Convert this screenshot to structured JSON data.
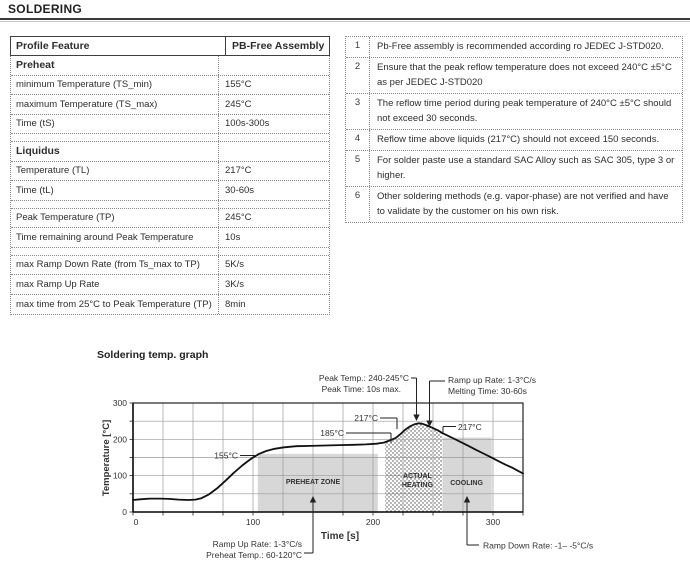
{
  "page": {
    "title": "SOLDERING"
  },
  "profile_table": {
    "headers": [
      "Profile Feature",
      "PB-Free Assembly"
    ],
    "rows": [
      {
        "feature": "Preheat",
        "value": "",
        "bold": true
      },
      {
        "feature": "minimum Temperature (TS_min)",
        "value": "155°C"
      },
      {
        "feature": "maximum Temperature (TS_max)",
        "value": "245°C"
      },
      {
        "feature": "Time (tS)",
        "value": "100s-300s"
      },
      {
        "spacer": true
      },
      {
        "feature": "Liquidus",
        "value": "",
        "bold": true
      },
      {
        "feature": "Temperature (TL)",
        "value": "217°C"
      },
      {
        "feature": "Time (tL)",
        "value": "30-60s"
      },
      {
        "spacer": true
      },
      {
        "feature": "Peak Temperature (TP)",
        "value": "245°C"
      },
      {
        "feature": "Time remaining around Peak Temperature",
        "value": "10s"
      },
      {
        "spacer": true
      },
      {
        "feature": "max Ramp Down Rate (from Ts_max to TP)",
        "value": "5K/s"
      },
      {
        "feature": "max Ramp Up Rate",
        "value": "3K/s"
      },
      {
        "feature": "max time from 25°C to Peak Temperature (TP)",
        "value": "8min"
      }
    ]
  },
  "notes_table": {
    "rows": [
      {
        "num": "1",
        "text": "Pb-Free assembly is recommended according ro JEDEC J-STD020."
      },
      {
        "num": "2",
        "text": "Ensure that the peak reflow temperature does not exceed 240°C ±5°C as per JEDEC J-STD020"
      },
      {
        "num": "3",
        "text": "The reflow time period during peak temperature of 240°C ±5°C should not exceed 30 seconds."
      },
      {
        "num": "4",
        "text": "Reflow time above liquids (217°C) should not exceed 150 seconds."
      },
      {
        "num": "5",
        "text": "For solder paste use a standard SAC Alloy such as SAC 305, type 3 or higher."
      },
      {
        "num": "6",
        "text": "Other soldering methods (e.g. vapor-phase) are not verified and have to validate by the customer on his own risk."
      }
    ]
  },
  "graph": {
    "title": "Soldering temp. graph",
    "annotations": {
      "peak_temp": "Peak Temp.: 240-245°C",
      "peak_time": "Peak Time: 10s max.",
      "ramp_up_rate_top": "Ramp up Rate: 1-3°C/s",
      "melting_time": "Melting Time: 30-60s",
      "temp_217_left": "217°C",
      "temp_185": "185°C",
      "temp_155": "155°C",
      "temp_217_right": "217°C",
      "ramp_up_rate_bottom": "Ramp Up Rate: 1-3°C/s",
      "preheat_temp": "Preheat Temp.: 60-120°C",
      "ramp_down_rate": "Ramp Down Rate: -1– -5°C/s"
    }
  },
  "chart_data": {
    "type": "line",
    "title": "Soldering temp. graph",
    "xlabel": "Time [s]",
    "ylabel": "Temperature [°C]",
    "xlim": [
      0,
      325
    ],
    "ylim": [
      0,
      300
    ],
    "xticks": [
      0,
      100,
      200,
      300
    ],
    "yticks": [
      0,
      100,
      200,
      300
    ],
    "grid": {
      "x_step": 25,
      "y_step": 50,
      "on": true
    },
    "legend": "none",
    "series": [
      {
        "name": "solder reflow temperature profile",
        "points": [
          [
            0,
            33
          ],
          [
            6,
            35
          ],
          [
            14,
            37
          ],
          [
            22,
            37
          ],
          [
            30,
            36
          ],
          [
            38,
            34
          ],
          [
            46,
            33
          ],
          [
            52,
            34
          ],
          [
            57,
            38
          ],
          [
            63,
            48
          ],
          [
            70,
            65
          ],
          [
            77,
            86
          ],
          [
            84,
            108
          ],
          [
            91,
            128
          ],
          [
            97,
            143
          ],
          [
            101,
            152
          ],
          [
            105,
            160
          ],
          [
            111,
            168
          ],
          [
            118,
            174
          ],
          [
            126,
            178
          ],
          [
            136,
            181
          ],
          [
            148,
            182
          ],
          [
            160,
            183
          ],
          [
            172,
            184
          ],
          [
            184,
            185
          ],
          [
            194,
            186
          ],
          [
            203,
            188
          ],
          [
            209,
            191
          ],
          [
            214,
            197
          ],
          [
            219,
            204
          ],
          [
            223,
            215
          ],
          [
            227,
            227
          ],
          [
            231,
            236
          ],
          [
            235,
            242
          ],
          [
            238,
            244
          ],
          [
            241,
            243
          ],
          [
            245,
            238
          ],
          [
            250,
            231
          ],
          [
            254,
            225
          ],
          [
            258,
            217
          ],
          [
            263,
            209
          ],
          [
            268,
            201
          ],
          [
            274,
            191
          ],
          [
            280,
            181
          ],
          [
            286,
            171
          ],
          [
            292,
            161
          ],
          [
            298,
            151
          ],
          [
            304,
            141
          ],
          [
            310,
            131
          ],
          [
            316,
            122
          ],
          [
            321,
            113
          ],
          [
            325,
            106
          ]
        ]
      }
    ],
    "zones": [
      {
        "label": "PREHEAT ZONE",
        "t_start": 104,
        "t_end": 204,
        "top_temp": 160,
        "style": "gray"
      },
      {
        "label": "ACTUAL HEATING",
        "t_start": 210,
        "t_end": 258,
        "top": "curve",
        "style": "dots"
      },
      {
        "label": "COOLING",
        "t_start": 258,
        "t_end": 299,
        "top_temp": 205,
        "style": "gray"
      }
    ],
    "annotations": [
      "Peak Temp.: 240-245°C / Peak Time: 10s max. -> peak of curve",
      "Ramp up Rate: 1-3°C/s / Melting Time: 30-60s -> right shoulder of peak",
      "217°C marked on rising and falling edges",
      "185°C marked at end of preheat plateau",
      "155°C marked on ramp-up",
      "Ramp Up Rate: 1-3°C/s / Preheat Temp.: 60-120°C -> preheat zone",
      "Ramp Down Rate: -1– -5°C/s -> cooling zone"
    ]
  }
}
